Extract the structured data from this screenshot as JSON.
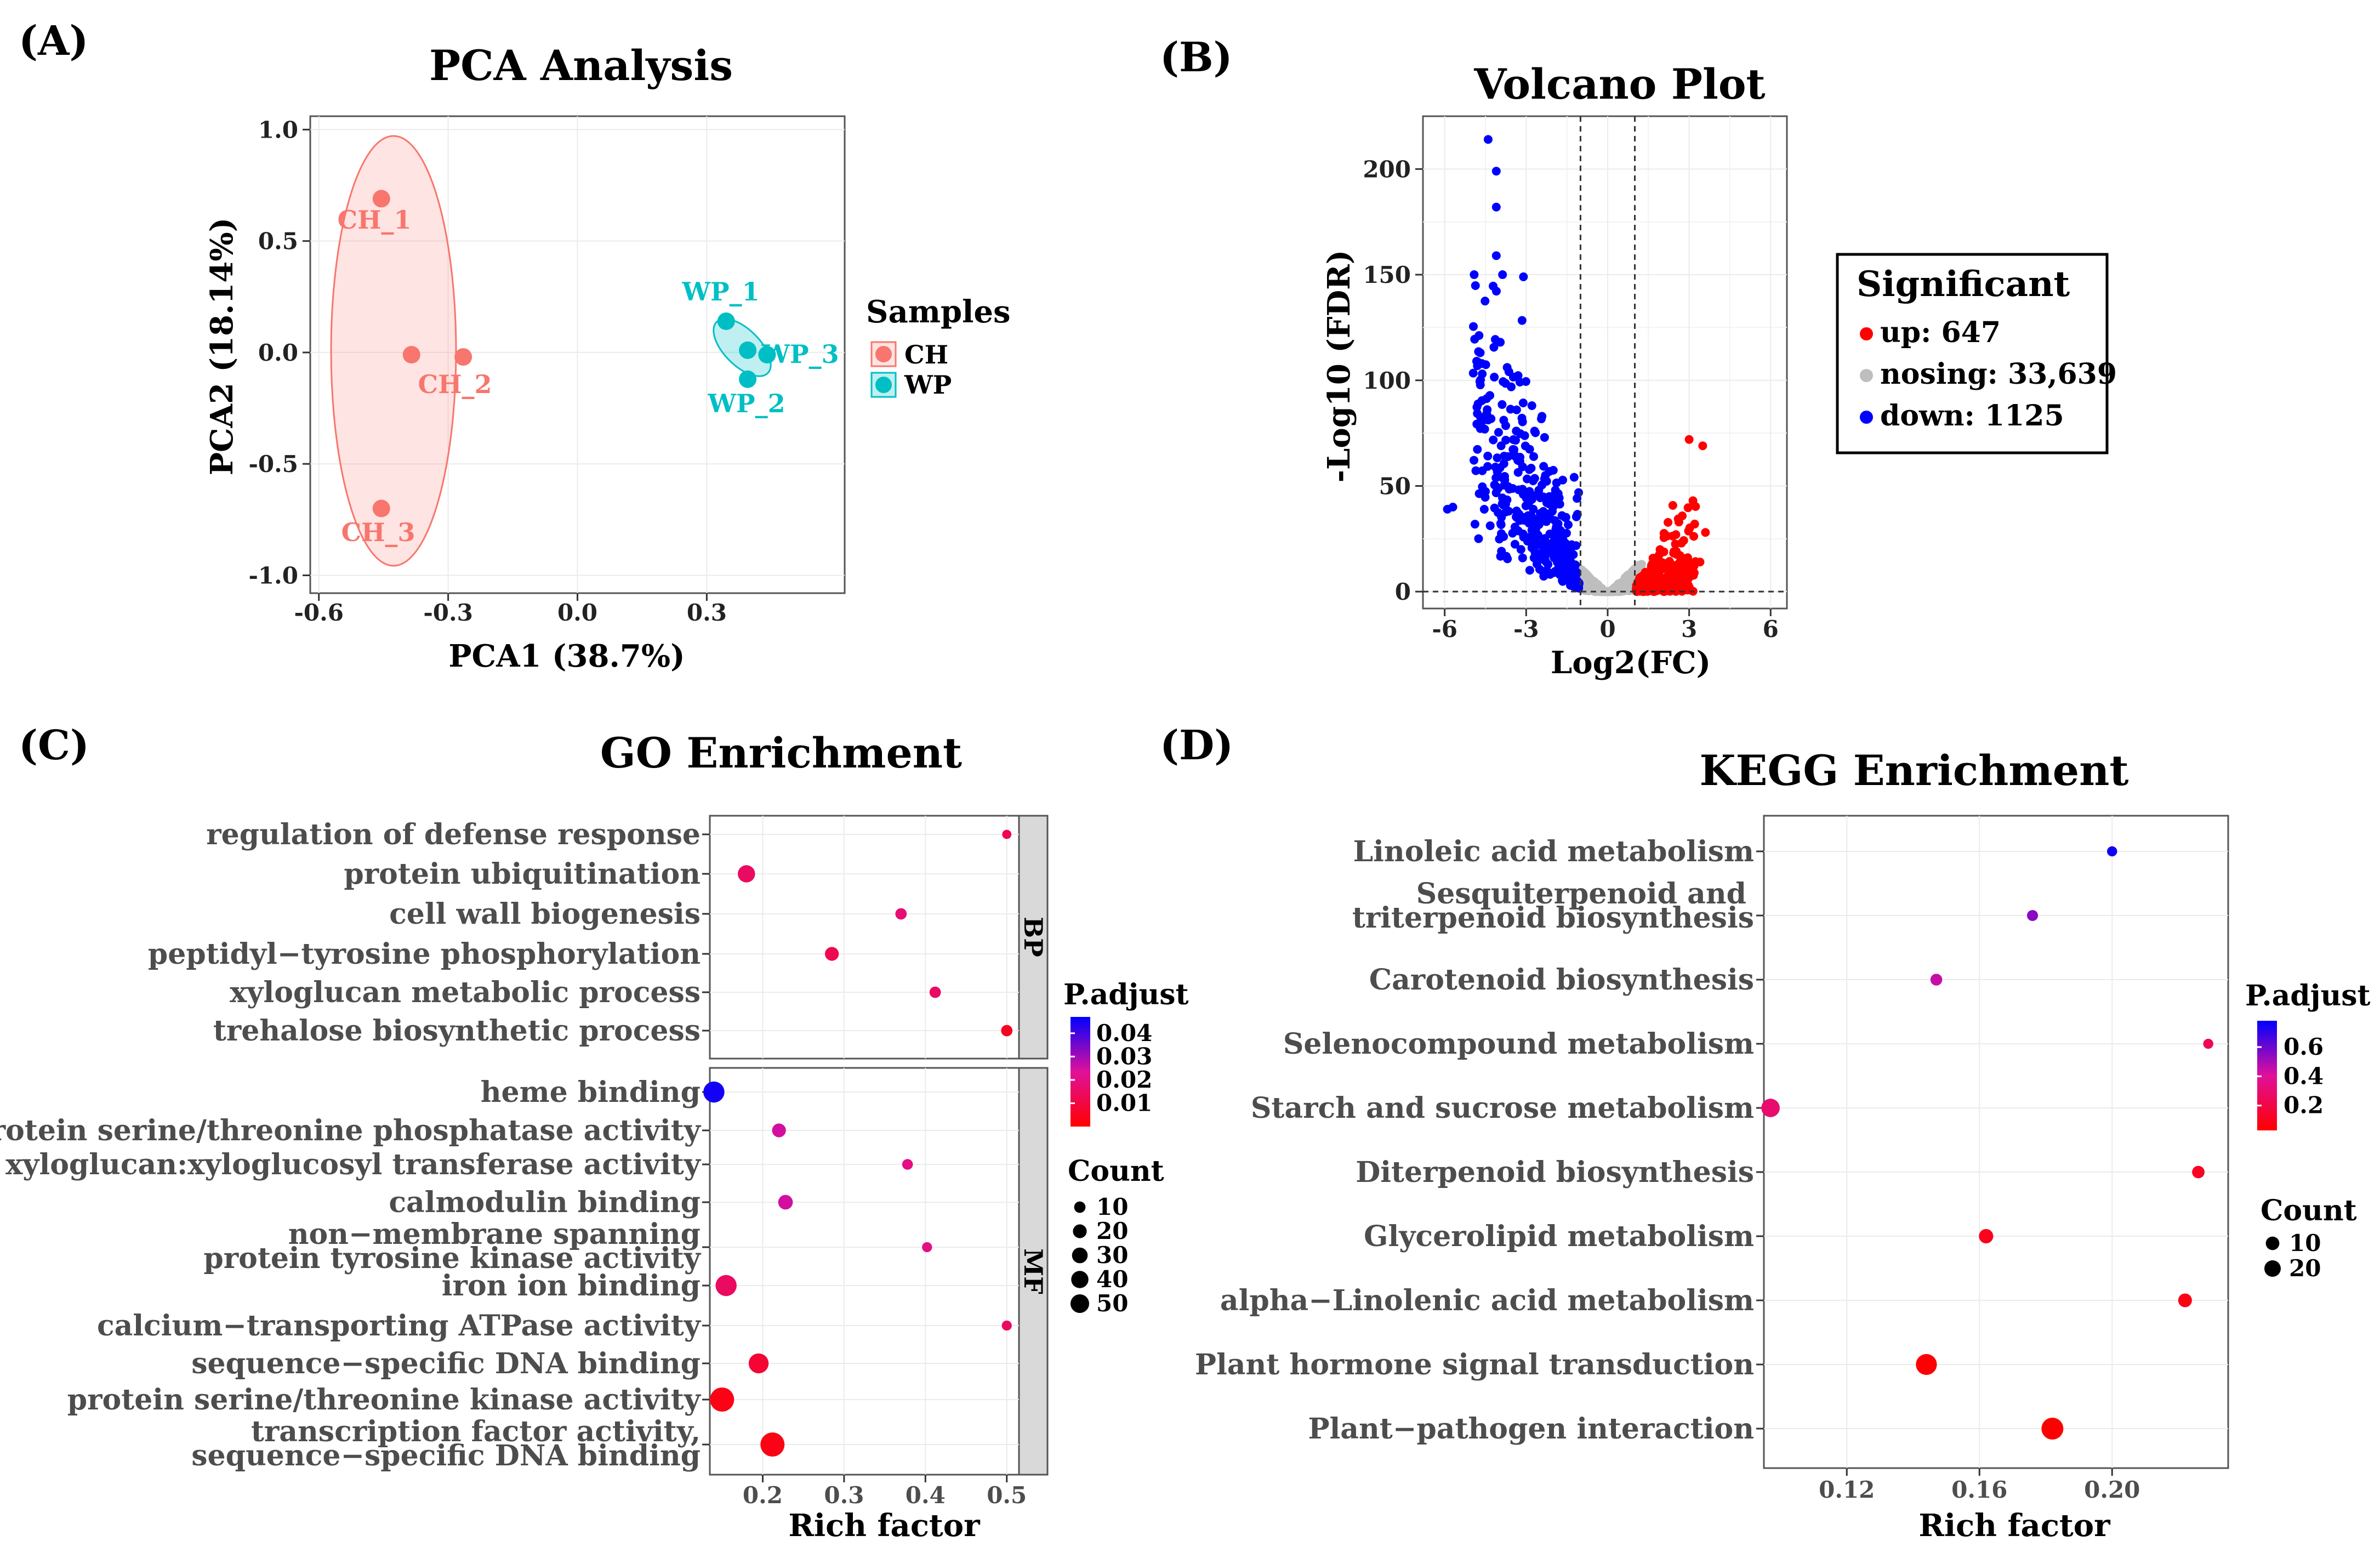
{
  "panels": {
    "A": {
      "letter": "(A)",
      "chart_data": {
        "type": "scatter",
        "title": "PCA Analysis",
        "xlabel": "PCA1 (38.7%)",
        "ylabel": "PCA2 (18.14%)",
        "xlim": [
          -0.62,
          0.62
        ],
        "ylim": [
          -1.08,
          1.06
        ],
        "xticks": [
          -0.6,
          -0.3,
          0.0,
          0.3
        ],
        "xtick_labels": [
          "-0.6",
          "-0.3",
          "0.0",
          "0.3"
        ],
        "yticks": [
          1.0,
          0.5,
          0.0,
          -0.5,
          -1.0
        ],
        "ytick_labels": [
          "1.0",
          "0.5",
          "0.0",
          "-0.5",
          "-1.0"
        ],
        "legend_title": "Samples",
        "legend_position": "right",
        "series": [
          {
            "name": "CH",
            "color": "#F8766D",
            "points": [
              {
                "label": "CH_1",
                "x": -0.455,
                "y": 0.69
              },
              {
                "label": "CH_2",
                "x": -0.265,
                "y": -0.02
              },
              {
                "label": "CH_3",
                "x": -0.455,
                "y": -0.7
              },
              {
                "label": "",
                "x": -0.385,
                "y": -0.01
              }
            ]
          },
          {
            "name": "WP",
            "color": "#00BFC4",
            "points": [
              {
                "label": "WP_1",
                "x": 0.345,
                "y": 0.14
              },
              {
                "label": "WP_2",
                "x": 0.395,
                "y": -0.12
              },
              {
                "label": "WP_3",
                "x": 0.44,
                "y": -0.01
              },
              {
                "label": "",
                "x": 0.395,
                "y": 0.01
              }
            ]
          }
        ]
      }
    },
    "B": {
      "letter": "(B)",
      "chart_data": {
        "type": "scatter",
        "title": "Volcano Plot",
        "xlabel": "Log2(FC)",
        "ylabel": "-Log10 (FDR)",
        "xlim": [
          -6.8,
          6.6
        ],
        "ylim": [
          -8,
          225
        ],
        "xticks": [
          -6,
          -3,
          0,
          3,
          6
        ],
        "xtick_labels": [
          "-6",
          "-3",
          "0",
          "3",
          "6"
        ],
        "yticks": [
          0,
          50,
          100,
          150,
          200
        ],
        "ytick_labels": [
          "0",
          "50",
          "100",
          "150",
          "200"
        ],
        "thresholds": {
          "x": [
            -1,
            1
          ],
          "y": 0
        },
        "legend_title": "Significant",
        "legend_position": "right",
        "legend": [
          {
            "label": "up: 647",
            "color": "#FF0000"
          },
          {
            "label": "nosing: 33,639",
            "color": "#BEBEBE"
          },
          {
            "label": "down: 1125",
            "color": "#0000FF"
          }
        ],
        "counts": {
          "up": 647,
          "nosig": 33639,
          "down": 1125
        },
        "notable_points": [
          {
            "x": -4.4,
            "y": 214,
            "group": "down"
          },
          {
            "x": -4.1,
            "y": 199,
            "group": "down"
          },
          {
            "x": -4.1,
            "y": 182,
            "group": "down"
          },
          {
            "x": -4.1,
            "y": 159,
            "group": "down"
          },
          {
            "x": -3.1,
            "y": 149,
            "group": "down"
          },
          {
            "x": -5.7,
            "y": 40,
            "group": "down"
          },
          {
            "x": -5.9,
            "y": 39,
            "group": "down"
          },
          {
            "x": 3.0,
            "y": 72,
            "group": "up"
          },
          {
            "x": 3.5,
            "y": 69,
            "group": "up"
          },
          {
            "x": 3.6,
            "y": 28,
            "group": "up"
          },
          {
            "x": 3.4,
            "y": 14,
            "group": "up"
          }
        ]
      }
    },
    "C": {
      "letter": "(C)",
      "chart_data": {
        "type": "scatter",
        "title": "GO Enrichment",
        "xlabel": "Rich factor",
        "xlim": [
          0.135,
          0.515
        ],
        "xticks": [
          0.2,
          0.3,
          0.4,
          0.5
        ],
        "xtick_labels": [
          "0.2",
          "0.3",
          "0.4",
          "0.5"
        ],
        "facets": [
          {
            "name": "BP",
            "terms": [
              {
                "term": [
                  "regulation of defense response"
                ],
                "rich_factor": 0.5,
                "p_adjust": 0.012,
                "count": 2
              },
              {
                "term": [
                  "protein ubiquitination"
                ],
                "rich_factor": 0.18,
                "p_adjust": 0.015,
                "count": 20
              },
              {
                "term": [
                  "cell wall biogenesis"
                ],
                "rich_factor": 0.37,
                "p_adjust": 0.018,
                "count": 5
              },
              {
                "term": [
                  "peptidyl−tyrosine phosphorylation"
                ],
                "rich_factor": 0.285,
                "p_adjust": 0.012,
                "count": 10
              },
              {
                "term": [
                  "xyloglucan metabolic process"
                ],
                "rich_factor": 0.412,
                "p_adjust": 0.015,
                "count": 5
              },
              {
                "term": [
                  "trehalose biosynthetic process"
                ],
                "rich_factor": 0.5,
                "p_adjust": 0.005,
                "count": 5
              }
            ]
          },
          {
            "name": "MF",
            "terms": [
              {
                "term": [
                  "heme binding"
                ],
                "rich_factor": 0.14,
                "p_adjust": 0.045,
                "count": 35
              },
              {
                "term": [
                  "protein serine/threonine phosphatase activity"
                ],
                "rich_factor": 0.22,
                "p_adjust": 0.025,
                "count": 10
              },
              {
                "term": [
                  "xyloglucan:xyloglucosyl transferase activity"
                ],
                "rich_factor": 0.378,
                "p_adjust": 0.02,
                "count": 4
              },
              {
                "term": [
                  "calmodulin binding"
                ],
                "rich_factor": 0.228,
                "p_adjust": 0.025,
                "count": 12
              },
              {
                "term": [
                  "non−membrane spanning",
                  "protein tyrosine kinase activity"
                ],
                "rich_factor": 0.402,
                "p_adjust": 0.02,
                "count": 3
              },
              {
                "term": [
                  "iron ion binding"
                ],
                "rich_factor": 0.155,
                "p_adjust": 0.015,
                "count": 35
              },
              {
                "term": [
                  "calcium−transporting ATPase activity"
                ],
                "rich_factor": 0.5,
                "p_adjust": 0.015,
                "count": 3
              },
              {
                "term": [
                  "sequence−specific DNA binding"
                ],
                "rich_factor": 0.195,
                "p_adjust": 0.008,
                "count": 30
              },
              {
                "term": [
                  "protein serine/threonine kinase activity"
                ],
                "rich_factor": 0.15,
                "p_adjust": 0.003,
                "count": 50
              },
              {
                "term": [
                  "transcription factor activity,",
                  "sequence−specific DNA binding"
                ],
                "rich_factor": 0.212,
                "p_adjust": 0.003,
                "count": 50
              }
            ]
          }
        ],
        "color_legend": {
          "title": "P.adjust",
          "tick_labels": [
            "0.04",
            "0.03",
            "0.02",
            "0.01"
          ],
          "ticks": [
            0.04,
            0.03,
            0.02,
            0.01
          ],
          "range": [
            0.0,
            0.047
          ],
          "low_color": "#FF0000",
          "high_color": "#0000FF"
        },
        "size_legend": {
          "title": "Count",
          "labels": [
            "10",
            "20",
            "30",
            "40",
            "50"
          ],
          "values": [
            10,
            20,
            30,
            40,
            50
          ]
        }
      }
    },
    "D": {
      "letter": "(D)",
      "chart_data": {
        "type": "scatter",
        "title": "KEGG Enrichment",
        "xlabel": "Rich factor",
        "xlim": [
          0.095,
          0.235
        ],
        "xticks": [
          0.12,
          0.16,
          0.2
        ],
        "xtick_labels": [
          "0.12",
          "0.16",
          "0.20"
        ],
        "terms": [
          {
            "term": [
              "Linoleic acid metabolism"
            ],
            "rich_factor": 0.2,
            "p_adjust": 0.75,
            "count": 3
          },
          {
            "term": [
              "Sesquiterpenoid and",
              "triterpenoid biosynthesis"
            ],
            "rich_factor": 0.176,
            "p_adjust": 0.55,
            "count": 4
          },
          {
            "term": [
              "Carotenoid biosynthesis"
            ],
            "rich_factor": 0.147,
            "p_adjust": 0.45,
            "count": 5
          },
          {
            "term": [
              "Selenocompound metabolism"
            ],
            "rich_factor": 0.229,
            "p_adjust": 0.25,
            "count": 3
          },
          {
            "term": [
              "Starch and sucrose metabolism"
            ],
            "rich_factor": 0.097,
            "p_adjust": 0.3,
            "count": 18
          },
          {
            "term": [
              "Diterpenoid biosynthesis"
            ],
            "rich_factor": 0.226,
            "p_adjust": 0.12,
            "count": 6
          },
          {
            "term": [
              "Glycerolipid metabolism"
            ],
            "rich_factor": 0.162,
            "p_adjust": 0.1,
            "count": 9
          },
          {
            "term": [
              "alpha−Linolenic acid metabolism"
            ],
            "rich_factor": 0.222,
            "p_adjust": 0.08,
            "count": 8
          },
          {
            "term": [
              "Plant hormone signal transduction"
            ],
            "rich_factor": 0.144,
            "p_adjust": 0.04,
            "count": 25
          },
          {
            "term": [
              "Plant−pathogen interaction"
            ],
            "rich_factor": 0.182,
            "p_adjust": 0.03,
            "count": 28
          }
        ],
        "color_legend": {
          "title": "P.adjust",
          "tick_labels": [
            "0.6",
            "0.4",
            "0.2"
          ],
          "ticks": [
            0.6,
            0.4,
            0.2
          ],
          "range": [
            0.03,
            0.78
          ],
          "low_color": "#FF0000",
          "high_color": "#0000FF"
        },
        "size_legend": {
          "title": "Count",
          "labels": [
            "10",
            "20"
          ],
          "values": [
            10,
            20
          ]
        }
      }
    }
  }
}
